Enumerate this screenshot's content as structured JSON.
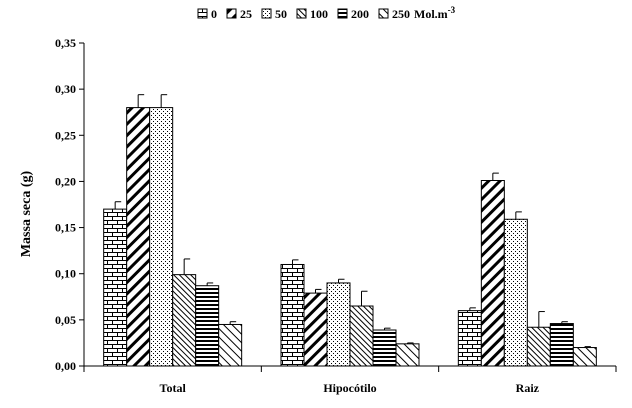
{
  "chart_data": {
    "type": "bar",
    "title": "",
    "xlabel": "",
    "ylabel": "Massa seca (g)",
    "ylim": [
      0,
      0.35
    ],
    "yticks": [
      "0,00",
      "0,05",
      "0,10",
      "0,15",
      "0,20",
      "0,25",
      "0,30",
      "0,35"
    ],
    "categories": [
      "Total",
      "Hipocótilo",
      "Raiz"
    ],
    "legend_position": "top",
    "legend_unit": "Mol.m",
    "legend_unit_exp": "-3",
    "series": [
      {
        "name": "0",
        "pattern": "bricks",
        "values": [
          0.17,
          0.11,
          0.06
        ],
        "errors": [
          0.008,
          0.005,
          0.003
        ]
      },
      {
        "name": "25",
        "pattern": "wide-diag",
        "values": [
          0.28,
          0.079,
          0.201
        ],
        "errors": [
          0.014,
          0.004,
          0.008
        ]
      },
      {
        "name": "50",
        "pattern": "dots",
        "values": [
          0.28,
          0.09,
          0.159
        ],
        "errors": [
          0.014,
          0.004,
          0.008
        ]
      },
      {
        "name": "100",
        "pattern": "fine-diag",
        "values": [
          0.099,
          0.065,
          0.042
        ],
        "errors": [
          0.017,
          0.016,
          0.017
        ]
      },
      {
        "name": "200",
        "pattern": "horizontal",
        "values": [
          0.087,
          0.039,
          0.046
        ],
        "errors": [
          0.003,
          0.002,
          0.002
        ]
      },
      {
        "name": "250",
        "pattern": "sparse-diag",
        "values": [
          0.045,
          0.024,
          0.02
        ],
        "errors": [
          0.003,
          0.001,
          0.001
        ]
      }
    ]
  }
}
